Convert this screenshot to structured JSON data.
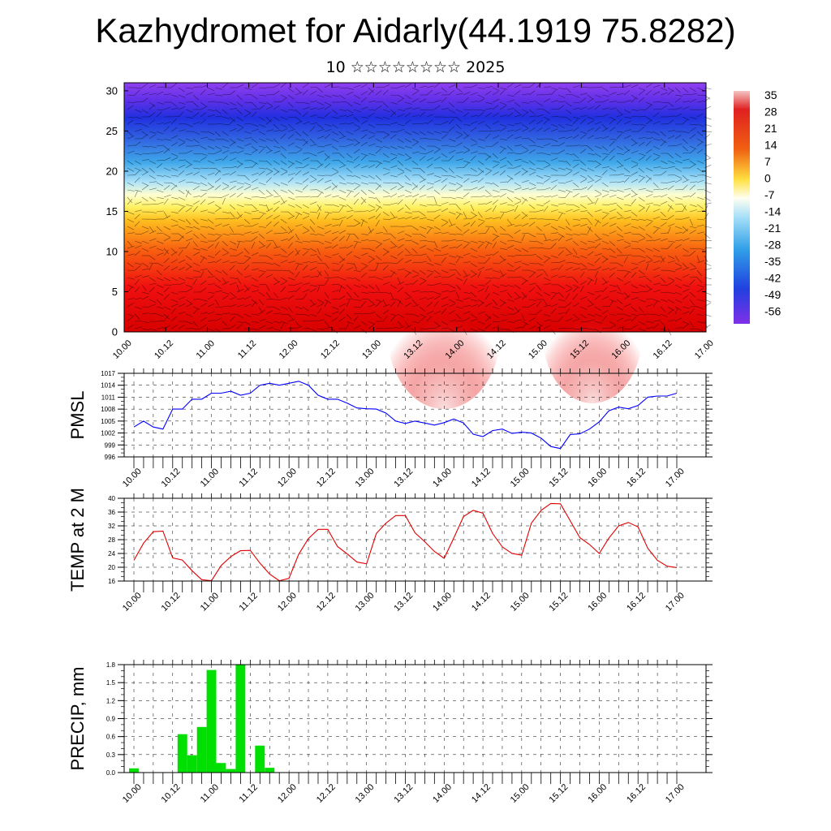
{
  "title": "Kazhydromet for Aidarly(44.1919 75.8282)",
  "subtitle": "10 ☆☆☆☆☆☆☆☆ 2025",
  "x_ticks": [
    "10.00",
    "10.12",
    "11.00",
    "11.12",
    "12.00",
    "12.12",
    "13.00",
    "13.12",
    "14.00",
    "14.12",
    "15.00",
    "15.12",
    "16.00",
    "16.12",
    "17.00"
  ],
  "colorbar": {
    "labels": [
      "35",
      "28",
      "21",
      "14",
      "7",
      "0",
      "-7",
      "-14",
      "-21",
      "-28",
      "-35",
      "-42",
      "-49",
      "-56"
    ],
    "colors": [
      "#f4c4c4",
      "#e02020",
      "#f08010",
      "#ffe040",
      "#a8e0f8",
      "#30a0e8",
      "#2040e0",
      "#8030e8"
    ]
  },
  "chart_data": [
    {
      "type": "heatmap",
      "name": "cross-section",
      "ylim": [
        0,
        31
      ],
      "yticks": [
        "0",
        "5",
        "10",
        "15",
        "20",
        "25",
        "30"
      ],
      "color_range": [
        -56,
        35
      ]
    },
    {
      "type": "line",
      "ylabel": "PMSL",
      "ylim": [
        996,
        1017
      ],
      "yticks": [
        "996",
        "999",
        "1002",
        "1005",
        "1008",
        "1011",
        "1014",
        "1017"
      ],
      "color": "#0000ff",
      "x": [
        0,
        3,
        6,
        9,
        12,
        15,
        18,
        21,
        24,
        27,
        30,
        33,
        36,
        39,
        42,
        45,
        48,
        51,
        54,
        57,
        60,
        63,
        66,
        69,
        72,
        75,
        78,
        81,
        84,
        87,
        90,
        93,
        96,
        99,
        102,
        105,
        108,
        111,
        114,
        117,
        120,
        123,
        126,
        129,
        132,
        135,
        138,
        141,
        144,
        147,
        150,
        153,
        156,
        159,
        162,
        165,
        168
      ],
      "values": [
        1003.5,
        1005,
        1003.5,
        1003,
        1008,
        1008,
        1010.5,
        1010.5,
        1012,
        1012,
        1012.5,
        1011.5,
        1012,
        1014,
        1014.5,
        1014,
        1014.5,
        1015,
        1014,
        1011.5,
        1010.5,
        1010.5,
        1009.5,
        1008.3,
        1008.1,
        1008,
        1007,
        1005,
        1004.4,
        1005,
        1004.5,
        1004,
        1004.6,
        1005.5,
        1004.5,
        1001.7,
        1001.1,
        1002.6,
        1003,
        1001.9,
        1002.2,
        1002,
        1000.7,
        998.6,
        998.1,
        1001.6,
        1001.8,
        1003,
        1004.8,
        1007.6,
        1008.5,
        1008.1,
        1008.9,
        1011,
        1011.3,
        1011.3,
        1012
      ]
    },
    {
      "type": "line",
      "ylabel": "TEMP at 2 M",
      "ylim": [
        16,
        40
      ],
      "yticks": [
        "16",
        "20",
        "24",
        "28",
        "32",
        "36",
        "40"
      ],
      "color": "#e00000",
      "x": [
        0,
        3,
        6,
        9,
        12,
        15,
        18,
        21,
        24,
        27,
        30,
        33,
        36,
        39,
        42,
        45,
        48,
        51,
        54,
        57,
        60,
        63,
        66,
        69,
        72,
        75,
        78,
        81,
        84,
        87,
        90,
        93,
        96,
        99,
        102,
        105,
        108,
        111,
        114,
        117,
        120,
        123,
        126,
        129,
        132,
        135,
        138,
        141,
        144,
        147,
        150,
        153,
        156,
        159,
        162,
        165,
        168
      ],
      "values": [
        22,
        27,
        30.3,
        30.5,
        22.7,
        22.1,
        19,
        16.4,
        16.1,
        20.5,
        23.1,
        24.8,
        24.9,
        21.2,
        18,
        16.1,
        16.8,
        23.8,
        28.3,
        31,
        31,
        26,
        23.9,
        21.5,
        21,
        29.8,
        32.8,
        35,
        35,
        30,
        27.4,
        24.6,
        22.6,
        28.5,
        34.7,
        36.5,
        35.7,
        29.8,
        25.9,
        24,
        23.5,
        32.8,
        36.5,
        38.5,
        38.4,
        33.5,
        28.6,
        26.6,
        24,
        28.5,
        32,
        33,
        31.7,
        25.5,
        22,
        20.3,
        19.9
      ]
    },
    {
      "type": "bar",
      "ylabel": "PRECIP, mm",
      "ylim": [
        0,
        1.8
      ],
      "yticks": [
        "0.0",
        "0.3",
        "0.6",
        "0.9",
        "1.2",
        "1.5",
        "1.8"
      ],
      "color": "#00e000",
      "x": [
        0,
        3,
        6,
        9,
        12,
        15,
        18,
        21,
        24,
        27,
        30,
        33,
        36,
        39,
        42,
        45
      ],
      "values": [
        0.07,
        0,
        0,
        0,
        0,
        0.64,
        0.29,
        0.76,
        1.71,
        0.16,
        0.06,
        1.8,
        0,
        0.45,
        0.08,
        0
      ]
    }
  ]
}
